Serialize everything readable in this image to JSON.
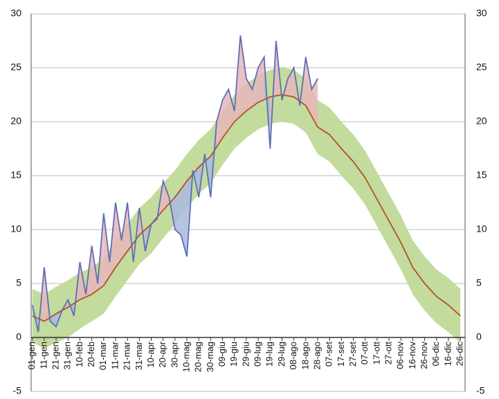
{
  "chart_data": {
    "type": "band-line",
    "xlim": [
      0,
      365
    ],
    "xticks": [
      {
        "value": 1,
        "label": "01-gen"
      },
      {
        "value": 11,
        "label": "11-gen"
      },
      {
        "value": 21,
        "label": "21-gen"
      },
      {
        "value": 31,
        "label": "31-gen"
      },
      {
        "value": 41,
        "label": "10-feb"
      },
      {
        "value": 51,
        "label": "20-feb"
      },
      {
        "value": 61,
        "label": "01-mar"
      },
      {
        "value": 71,
        "label": "11-mar"
      },
      {
        "value": 81,
        "label": "21-mar"
      },
      {
        "value": 91,
        "label": "31-mar"
      },
      {
        "value": 101,
        "label": "10-apr"
      },
      {
        "value": 111,
        "label": "20-apr"
      },
      {
        "value": 121,
        "label": "30-apr"
      },
      {
        "value": 131,
        "label": "10-mag"
      },
      {
        "value": 141,
        "label": "20-mag"
      },
      {
        "value": 151,
        "label": "30-mag"
      },
      {
        "value": 161,
        "label": "09-giu"
      },
      {
        "value": 171,
        "label": "19-giu"
      },
      {
        "value": 181,
        "label": "29-giu"
      },
      {
        "value": 191,
        "label": "09-lug"
      },
      {
        "value": 201,
        "label": "19-lug"
      },
      {
        "value": 211,
        "label": "29-lug"
      },
      {
        "value": 221,
        "label": "08-ago"
      },
      {
        "value": 231,
        "label": "18-ago"
      },
      {
        "value": 241,
        "label": "28-ago"
      },
      {
        "value": 251,
        "label": "07-set"
      },
      {
        "value": 261,
        "label": "17-set"
      },
      {
        "value": 271,
        "label": "27-set"
      },
      {
        "value": 281,
        "label": "07-ott"
      },
      {
        "value": 291,
        "label": "17-ott"
      },
      {
        "value": 301,
        "label": "27-ott"
      },
      {
        "value": 311,
        "label": "06-nov"
      },
      {
        "value": 321,
        "label": "16-nov"
      },
      {
        "value": 331,
        "label": "26-nov"
      },
      {
        "value": 341,
        "label": "06-dic"
      },
      {
        "value": 351,
        "label": "16-dic"
      },
      {
        "value": 361,
        "label": "26-dic"
      }
    ],
    "ylim": [
      -5,
      30
    ],
    "yticks": [
      -5,
      0,
      5,
      10,
      15,
      20,
      25,
      30
    ],
    "grid": true,
    "band": {
      "color": "#c3db9c",
      "x": [
        1,
        11,
        21,
        31,
        41,
        51,
        61,
        71,
        81,
        91,
        101,
        111,
        121,
        131,
        141,
        151,
        161,
        171,
        181,
        191,
        201,
        211,
        221,
        231,
        241,
        251,
        261,
        271,
        281,
        291,
        301,
        311,
        321,
        331,
        341,
        351,
        361
      ],
      "lower": [
        -0.5,
        -1,
        -0.5,
        0,
        0.8,
        1.5,
        2.2,
        3.8,
        5.3,
        6.8,
        7.8,
        9.2,
        10.5,
        12,
        13.3,
        14.3,
        16,
        17.5,
        18.5,
        19.3,
        19.8,
        20,
        19.8,
        19,
        17,
        16.3,
        15,
        13.8,
        12.3,
        10.3,
        8.3,
        6.3,
        4,
        2.5,
        1.3,
        0.5,
        -0.5
      ],
      "upper": [
        4.5,
        4,
        4.7,
        5.3,
        6,
        6.5,
        7.3,
        9,
        10.5,
        12,
        13,
        14.3,
        15.5,
        17,
        18.3,
        19.3,
        21,
        22.5,
        23.5,
        24.3,
        24.8,
        25,
        24.8,
        24,
        22,
        21.3,
        20,
        18.8,
        17.3,
        15.3,
        13.3,
        11.3,
        9,
        7.5,
        6.3,
        5.5,
        4.5
      ]
    },
    "series": [
      {
        "color": "#b0522a",
        "x": [
          1,
          11,
          21,
          31,
          41,
          51,
          61,
          71,
          81,
          91,
          101,
          111,
          121,
          131,
          141,
          151,
          161,
          171,
          181,
          191,
          201,
          211,
          221,
          231,
          241,
          251,
          261,
          271,
          281,
          291,
          301,
          311,
          321,
          331,
          341,
          351,
          361
        ],
        "values": [
          2,
          1.5,
          2.2,
          2.8,
          3.5,
          4,
          4.8,
          6.5,
          8,
          9.5,
          10.5,
          11.8,
          13,
          14.5,
          15.8,
          16.8,
          18.5,
          20,
          21,
          21.8,
          22.3,
          22.5,
          22.3,
          21.5,
          19.5,
          18.8,
          17.5,
          16.3,
          14.8,
          12.8,
          10.8,
          8.8,
          6.5,
          5,
          3.8,
          3,
          2
        ]
      },
      {
        "color": "#5b6fb5",
        "x": [
          1,
          6,
          11,
          16,
          21,
          26,
          31,
          36,
          41,
          46,
          51,
          56,
          61,
          66,
          71,
          76,
          81,
          86,
          91,
          96,
          101,
          106,
          111,
          116,
          121,
          126,
          131,
          136,
          141,
          146,
          151,
          156,
          161,
          166,
          171,
          176,
          181,
          186,
          191,
          196,
          201,
          206,
          211,
          216,
          221,
          226,
          231,
          236,
          241
        ],
        "values": [
          3,
          0.5,
          6.5,
          1.5,
          1,
          2.5,
          3.5,
          2,
          7,
          4,
          8.5,
          5,
          11.5,
          7,
          12.5,
          9,
          12.5,
          7,
          12,
          8,
          10.5,
          11,
          14.5,
          13,
          10,
          9.5,
          7.5,
          15.5,
          13,
          17,
          13,
          20,
          22,
          23,
          21,
          28,
          24,
          23,
          25,
          26,
          17.5,
          27.5,
          22,
          24,
          25,
          21.5,
          26,
          23,
          24
        ]
      }
    ],
    "fill_above": "#e8b6bb",
    "fill_below": "#a9badf"
  }
}
